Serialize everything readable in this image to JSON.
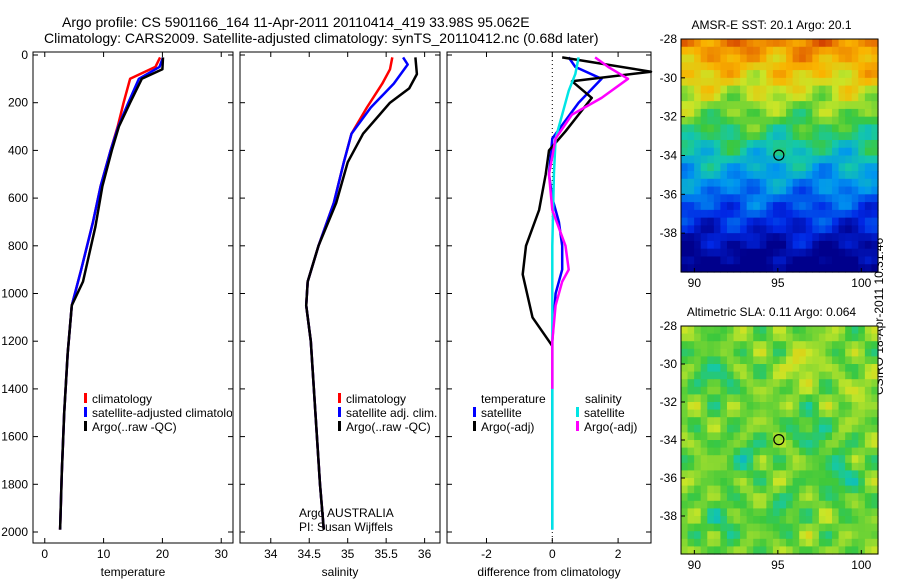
{
  "title_line1": "Argo profile: CS 5901166_164 11-Apr-2011 20110414_419 33.98S 95.062E",
  "title_line2": "Climatology: CARS2009. Satellite-adjusted climatology: synTS_20110412.nc (0.68d later)",
  "side_label": "CSIRO 18-Apr-2011 10:31:46",
  "chart_data": [
    {
      "type": "line",
      "id": "temperature",
      "xlabel": "temperature",
      "xlim": [
        -2,
        32
      ],
      "xticks": [
        0,
        10,
        20,
        30
      ],
      "ylim": [
        2100,
        0
      ],
      "yticks": [
        0,
        200,
        400,
        600,
        800,
        1000,
        1200,
        1400,
        1600,
        1800,
        2000
      ],
      "legend": [
        "climatology",
        "satellite-adjusted climatology",
        "Argo(..raw -QC)"
      ],
      "series": [
        {
          "name": "climatology",
          "color": "#ff0000",
          "x": [
            19.6,
            18.8,
            14.5,
            13.4,
            12.4,
            11.2,
            9.5,
            8.2,
            6.2,
            4.6,
            3.9,
            3.3,
            2.9,
            2.6
          ],
          "y": [
            10,
            50,
            100,
            200,
            300,
            400,
            550,
            700,
            900,
            1050,
            1250,
            1500,
            1750,
            1990
          ]
        },
        {
          "name": "satellite-adjusted climatology",
          "color": "#0000ff",
          "x": [
            20.1,
            19.5,
            16.0,
            14.2,
            12.5,
            11.2,
            9.5,
            8.2,
            6.2,
            4.6,
            3.9,
            3.3,
            2.9,
            2.6
          ],
          "y": [
            10,
            50,
            100,
            200,
            300,
            400,
            550,
            700,
            900,
            1050,
            1250,
            1500,
            1750,
            1990
          ]
        },
        {
          "name": "Argo(..raw -QC)",
          "color": "#000000",
          "x": [
            20.1,
            20.0,
            16.5,
            14.5,
            12.6,
            11.4,
            9.8,
            8.6,
            6.5,
            4.6,
            3.9,
            3.3,
            2.9,
            2.6
          ],
          "y": [
            10,
            60,
            100,
            200,
            300,
            400,
            550,
            720,
            950,
            1050,
            1250,
            1500,
            1750,
            1990
          ]
        }
      ]
    },
    {
      "type": "line",
      "id": "salinity",
      "xlabel": "salinity",
      "xlim": [
        33.6,
        36.2
      ],
      "xticks": [
        34,
        34.5,
        35,
        35.5,
        36
      ],
      "ylim": [
        2100,
        0
      ],
      "legend": [
        "climatology",
        "satellite adj. clim.",
        "Argo(..raw -QC)"
      ],
      "annotation": [
        "Argo AUSTRALIA",
        "PI: Susan Wijffels"
      ],
      "series": [
        {
          "name": "climatology",
          "color": "#ff0000",
          "x": [
            35.58,
            35.55,
            35.45,
            35.25,
            35.05,
            34.95,
            34.82,
            34.62,
            34.48,
            34.46,
            34.52,
            34.58,
            34.64,
            34.69
          ],
          "y": [
            10,
            60,
            120,
            220,
            330,
            450,
            620,
            800,
            950,
            1050,
            1200,
            1500,
            1800,
            1990
          ]
        },
        {
          "name": "satellite adj. clim.",
          "color": "#0000ff",
          "x": [
            35.72,
            35.78,
            35.6,
            35.3,
            35.05,
            34.95,
            34.82,
            34.62,
            34.48,
            34.46,
            34.52,
            34.58,
            34.64,
            34.69
          ],
          "y": [
            10,
            40,
            120,
            220,
            330,
            450,
            620,
            800,
            950,
            1050,
            1200,
            1500,
            1800,
            1990
          ]
        },
        {
          "name": "Argo(..raw -QC)",
          "color": "#000000",
          "x": [
            35.88,
            35.9,
            35.8,
            35.55,
            35.2,
            35.0,
            34.85,
            34.62,
            34.48,
            34.46,
            34.52,
            34.58,
            34.64,
            34.69
          ],
          "y": [
            10,
            80,
            140,
            200,
            330,
            450,
            620,
            800,
            950,
            1050,
            1200,
            1500,
            1800,
            1990
          ]
        }
      ]
    },
    {
      "type": "line",
      "id": "difference",
      "xlabel": "difference from climatology",
      "xlim": [
        -3.2,
        3.0
      ],
      "xticks": [
        -2,
        0,
        2
      ],
      "ylim": [
        2100,
        0
      ],
      "legend_left": {
        "header": "temperature",
        "items": [
          "satellite",
          "Argo(-adj)"
        ]
      },
      "legend_right": {
        "header": "salinity",
        "items": [
          "satellite",
          "Argo(-adj)"
        ]
      },
      "series": [
        {
          "name": "temperature satellite",
          "color": "#0000ff",
          "x": [
            0.5,
            0.7,
            1.5,
            0.8,
            0.0,
            -0.1,
            0.0,
            0.2,
            0.3,
            0.3,
            0.1,
            0.0,
            0.0,
            0.0
          ],
          "y": [
            10,
            50,
            100,
            200,
            350,
            500,
            600,
            700,
            800,
            900,
            1000,
            1200,
            1600,
            1990
          ]
        },
        {
          "name": "temperature Argo(-adj)",
          "color": "#000000",
          "x": [
            0.3,
            3.0,
            0.6,
            1.2,
            0.8,
            0.4,
            -0.1,
            -0.2,
            -0.4,
            -0.8,
            -0.9,
            -0.6,
            -0.1,
            0.0
          ],
          "y": [
            10,
            70,
            110,
            180,
            250,
            320,
            400,
            500,
            650,
            800,
            920,
            1100,
            1200,
            1220
          ]
        },
        {
          "name": "salinity satellite",
          "color": "#00e5e5",
          "x": [
            0.8,
            0.7,
            0.5,
            0.3,
            0.1,
            0.05,
            0.0,
            0.0,
            0.0,
            0.0,
            0.0
          ],
          "y": [
            10,
            80,
            150,
            250,
            350,
            500,
            800,
            1100,
            1500,
            1800,
            1990
          ]
        },
        {
          "name": "salinity Argo(-adj)",
          "color": "#ff00ff",
          "x": [
            1.3,
            1.7,
            2.3,
            1.5,
            0.6,
            0.1,
            -0.1,
            0.0,
            0.4,
            0.5,
            0.3,
            0.1,
            0.0,
            0.0
          ],
          "y": [
            10,
            50,
            100,
            180,
            250,
            350,
            500,
            650,
            800,
            900,
            950,
            1050,
            1200,
            1400
          ]
        }
      ]
    },
    {
      "type": "heatmap",
      "id": "sst",
      "title": "AMSR-E SST: 20.1  Argo: 20.1",
      "xlim": [
        89.2,
        101.0
      ],
      "ylim": [
        -40,
        -28
      ],
      "xticks": [
        90,
        95,
        100
      ],
      "yticks": [
        -28,
        -30,
        -32,
        -34,
        -36,
        -38
      ],
      "marker": {
        "lon": 95.062,
        "lat": -33.98
      }
    },
    {
      "type": "heatmap",
      "id": "sla",
      "title": "Altimetric SLA: 0.11  Argo: 0.064",
      "xlim": [
        89.2,
        101.0
      ],
      "ylim": [
        -40,
        -28
      ],
      "xticks": [
        90,
        95,
        100
      ],
      "yticks": [
        -28,
        -30,
        -32,
        -34,
        -36,
        -38
      ],
      "marker": {
        "lon": 95.062,
        "lat": -33.98
      }
    }
  ]
}
